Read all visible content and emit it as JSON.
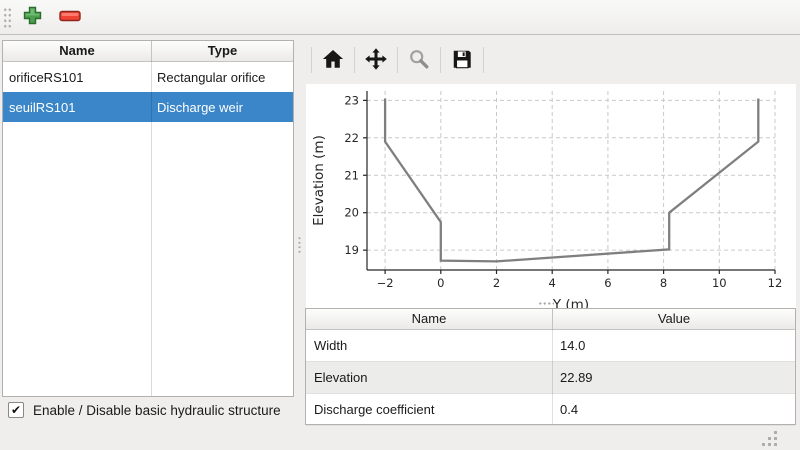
{
  "top_toolbar": {
    "icons": [
      "drag-handle",
      "plus-icon",
      "minus-icon"
    ]
  },
  "structures_table": {
    "columns": [
      "Name",
      "Type"
    ],
    "rows": [
      {
        "name": "orificeRS101",
        "type": "Rectangular orifice",
        "selected": false
      },
      {
        "name": "seuilRS101",
        "type": "Discharge weir",
        "selected": true
      }
    ]
  },
  "checkbox": {
    "label": "Enable / Disable basic hydraulic structure",
    "checked": true,
    "check_glyph": "✔"
  },
  "chart_toolbar": {
    "icons": [
      "home-icon",
      "pan-icon",
      "zoom-icon",
      "save-icon"
    ],
    "disabled": [
      "zoom-icon"
    ]
  },
  "chart_data": {
    "type": "line",
    "title": "",
    "xlabel": "Y (m)",
    "ylabel": "Elevation (m)",
    "x": [
      -2,
      -2,
      0,
      0,
      2,
      8.2,
      8.2,
      11.4,
      11.4
    ],
    "y": [
      23.05,
      21.9,
      19.75,
      18.72,
      18.7,
      19.02,
      20.0,
      21.9,
      23.05
    ],
    "xlim": [
      -2.65,
      12.0
    ],
    "ylim": [
      18.47,
      23.25
    ],
    "xticks": [
      -2,
      0,
      2,
      4,
      6,
      8,
      10,
      12
    ],
    "yticks": [
      19,
      20,
      21,
      22,
      23
    ],
    "grid": true,
    "legend": null,
    "line_color": "#7f7f7f",
    "grid_color": "#c9c9c9",
    "axis_color": "#262626"
  },
  "properties_table": {
    "columns": [
      "Name",
      "Value"
    ],
    "rows": [
      {
        "name": "Width",
        "value": "14.0"
      },
      {
        "name": "Elevation",
        "value": "22.89"
      },
      {
        "name": "Discharge coefficient",
        "value": "0.4"
      }
    ]
  },
  "colors": {
    "selection": "#3a86c8",
    "stripe": "#ececeb",
    "window_bg": "#efeeec"
  }
}
